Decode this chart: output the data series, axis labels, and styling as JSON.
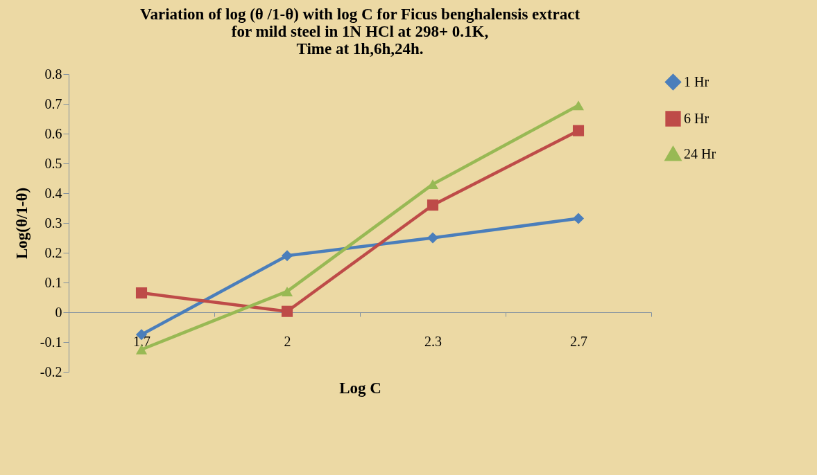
{
  "chart_data": {
    "type": "line",
    "title": "Variation of log (θ /1-θ) with log C for Ficus benghalensis extract\nfor mild steel in 1N HCl at 298+ 0.1K,\nTime at 1h,6h,24h.",
    "xlabel": "Log C",
    "ylabel": "Log(θ/1-θ)",
    "categories": [
      "1.7",
      "2",
      "2.3",
      "2.7"
    ],
    "series": [
      {
        "name": "1 Hr",
        "color": "#4a7ebb",
        "marker": "diamond",
        "values": [
          -0.075,
          0.19,
          0.25,
          0.315
        ]
      },
      {
        "name": "6 Hr",
        "color": "#be4b48",
        "marker": "square",
        "values": [
          0.065,
          0.003,
          0.36,
          0.61
        ]
      },
      {
        "name": "24 Hr",
        "color": "#98b954",
        "marker": "triangle",
        "values": [
          -0.125,
          0.07,
          0.43,
          0.695
        ]
      }
    ],
    "ylim": [
      -0.2,
      0.8
    ],
    "yticks": [
      -0.2,
      -0.1,
      0,
      0.1,
      0.2,
      0.3,
      0.4,
      0.5,
      0.6,
      0.7,
      0.8
    ],
    "grid": false,
    "legend": "right"
  }
}
